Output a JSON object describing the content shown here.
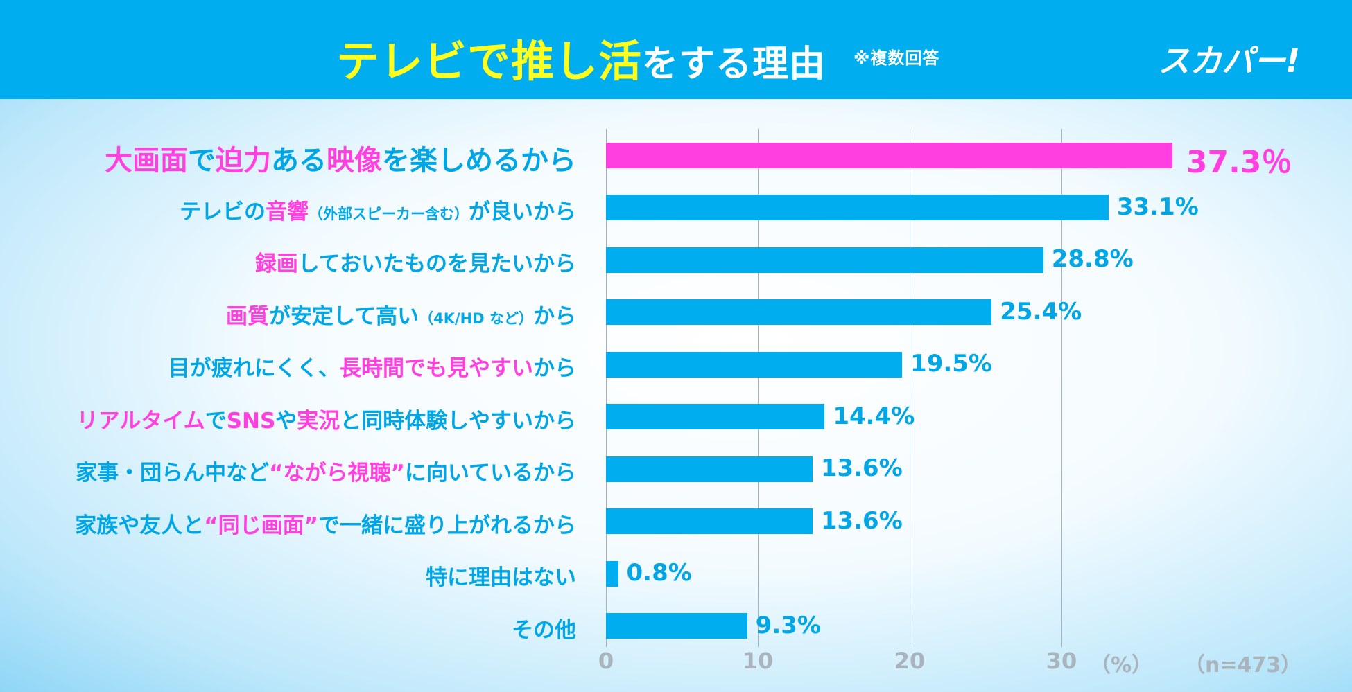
{
  "header": {
    "title_yellow_1": "テレビで",
    "title_yellow_2": "推し活",
    "title_white": "をする理由",
    "note": "※複数回答",
    "logo": "スカパー!"
  },
  "colors": {
    "header": "#00aeef",
    "title": "#ffff1e",
    "bar": "#00aeef",
    "highlight": "#ff3fe0"
  },
  "chart_data": {
    "type": "bar",
    "orientation": "horizontal",
    "xlim": [
      0,
      40
    ],
    "ticks": [
      "0",
      "10",
      "20",
      "30"
    ],
    "unit": "（%）",
    "sample": "（n=473）",
    "grid": true,
    "categories": [
      {
        "segments": [
          {
            "t": "大画面",
            "c": "p"
          },
          {
            "t": "で",
            "c": "b"
          },
          {
            "t": "迫力",
            "c": "p"
          },
          {
            "t": "ある",
            "c": "b"
          },
          {
            "t": "映像",
            "c": "p"
          },
          {
            "t": "を楽しめるから",
            "c": "b"
          }
        ]
      },
      {
        "segments": [
          {
            "t": "テレビの",
            "c": "b"
          },
          {
            "t": "音響",
            "c": "p"
          },
          {
            "t": "（外部スピーカー含む）",
            "c": "s"
          },
          {
            "t": "が良いから",
            "c": "b"
          }
        ]
      },
      {
        "segments": [
          {
            "t": "録画",
            "c": "p"
          },
          {
            "t": "しておいたものを見たいから",
            "c": "b"
          }
        ]
      },
      {
        "segments": [
          {
            "t": "画質",
            "c": "p"
          },
          {
            "t": "が安定して高い",
            "c": "b"
          },
          {
            "t": "（4K/HD など）",
            "c": "s"
          },
          {
            "t": "から",
            "c": "b"
          }
        ]
      },
      {
        "segments": [
          {
            "t": "目が疲れにくく、",
            "c": "b"
          },
          {
            "t": "長時間でも見やすい",
            "c": "p"
          },
          {
            "t": "から",
            "c": "b"
          }
        ]
      },
      {
        "segments": [
          {
            "t": "リアルタイム",
            "c": "p"
          },
          {
            "t": "で",
            "c": "b"
          },
          {
            "t": "SNS",
            "c": "p"
          },
          {
            "t": "や",
            "c": "b"
          },
          {
            "t": "実況",
            "c": "p"
          },
          {
            "t": "と同時体験しやすいから",
            "c": "b"
          }
        ]
      },
      {
        "segments": [
          {
            "t": "家事・団らん中など",
            "c": "b"
          },
          {
            "t": "“ながら視聴”",
            "c": "p"
          },
          {
            "t": "に向いているから",
            "c": "b"
          }
        ]
      },
      {
        "segments": [
          {
            "t": "家族や友人と",
            "c": "b"
          },
          {
            "t": "“同じ画面”",
            "c": "p"
          },
          {
            "t": "で一緒に盛り上がれるから",
            "c": "b"
          }
        ]
      },
      {
        "segments": [
          {
            "t": "特に理由はない",
            "c": "b"
          }
        ]
      },
      {
        "segments": [
          {
            "t": "その他",
            "c": "b"
          }
        ]
      }
    ],
    "values": [
      37.3,
      33.1,
      28.8,
      25.4,
      19.5,
      14.4,
      13.6,
      13.6,
      0.8,
      9.3
    ],
    "value_labels": [
      "37.3％",
      "33.1%",
      "28.8%",
      "25.4%",
      "19.5%",
      "14.4%",
      "13.6%",
      "13.6%",
      "0.8%",
      "9.3%"
    ]
  }
}
